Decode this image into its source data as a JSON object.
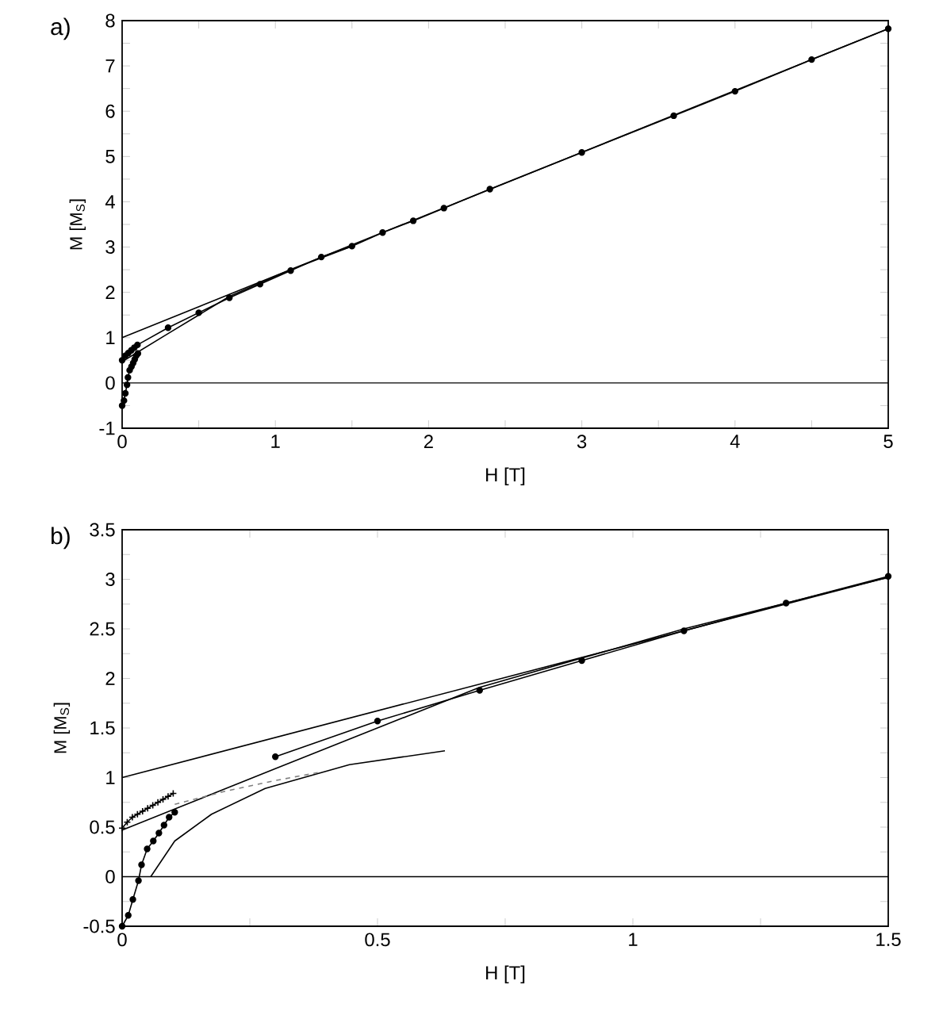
{
  "chart_data": [
    {
      "type": "line",
      "title": "a)",
      "xlabel": "H [T]",
      "ylabel": "M [M$_{S}$]",
      "xlim": [
        0,
        5
      ],
      "ylim": [
        -1,
        8
      ],
      "xticks": [
        0,
        {
          "value": 0.5,
          "label": null
        },
        1,
        {
          "value": 1.5,
          "label": null
        },
        2,
        {
          "value": 2.5,
          "label": null
        },
        3,
        {
          "value": 3.5,
          "label": null
        },
        4,
        {
          "value": 4.5,
          "label": null
        },
        5
      ],
      "yticks": [
        -1,
        {
          "value": -0.5,
          "label": null
        },
        0,
        {
          "value": 0.5,
          "label": null
        },
        1,
        {
          "value": 1.5,
          "label": null
        },
        2,
        {
          "value": 2.5,
          "label": null
        },
        3,
        {
          "value": 3.5,
          "label": null
        },
        4,
        {
          "value": 4.5,
          "label": null
        },
        5,
        {
          "value": 5.5,
          "label": null
        },
        6,
        {
          "value": 6.5,
          "label": null
        },
        7,
        {
          "value": 7.5,
          "label": null
        },
        8
      ],
      "ref_lines": [
        {
          "axis": "y",
          "value": 0
        }
      ],
      "series": [
        {
          "color": "#000000",
          "marker": "circle",
          "x": [
            0,
            0.02,
            0.04,
            0.06,
            0.08,
            0.1,
            0.3,
            0.5,
            0.7,
            0.9,
            1.1,
            1.3,
            1.5,
            1.7,
            1.9,
            2.1,
            2.4,
            3.0,
            3.6,
            4.0,
            4.5,
            5.0
          ],
          "values": [
            0.5,
            0.6,
            0.66,
            0.72,
            0.78,
            0.84,
            1.22,
            1.55,
            1.88,
            2.18,
            2.48,
            2.78,
            3.02,
            3.32,
            3.58,
            3.86,
            4.28,
            5.09,
            5.9,
            6.44,
            7.14,
            7.82
          ]
        },
        {
          "color": "#000000",
          "marker": "none",
          "x": [
            0,
            5
          ],
          "values": [
            1.0,
            7.82
          ]
        },
        {
          "color": "#000000",
          "marker": "none",
          "x": [
            0,
            0.3,
            0.7,
            1.1,
            1.5
          ],
          "values": [
            0.47,
            1.09,
            1.91,
            2.5,
            3.02
          ]
        },
        {
          "color": "#000000",
          "marker": "circle",
          "x": [
            0,
            0.012,
            0.021,
            0.032,
            0.038,
            0.049,
            0.061,
            0.072,
            0.082,
            0.092,
            0.103
          ],
          "values": [
            -0.5,
            -0.39,
            -0.23,
            -0.04,
            0.12,
            0.28,
            0.36,
            0.44,
            0.52,
            0.6,
            0.65
          ]
        }
      ]
    },
    {
      "type": "line",
      "title": "b)",
      "xlabel": "H [T]",
      "ylabel": "M [M$_{S}$]",
      "xlim": [
        0,
        1.5
      ],
      "ylim": [
        -0.5,
        3.5
      ],
      "xticks": [
        0,
        {
          "value": 0.25,
          "label": null
        },
        0.5,
        {
          "value": 0.75,
          "label": null
        },
        1,
        {
          "value": 1.25,
          "label": null
        },
        1.5
      ],
      "yticks": [
        -0.5,
        {
          "value": -0.25,
          "label": null
        },
        0,
        {
          "value": 0.25,
          "label": null
        },
        0.5,
        {
          "value": 0.75,
          "label": null
        },
        1,
        {
          "value": 1.25,
          "label": null
        },
        1.5,
        {
          "value": 1.75,
          "label": null
        },
        2,
        {
          "value": 2.25,
          "label": null
        },
        2.5,
        {
          "value": 2.75,
          "label": null
        },
        3,
        {
          "value": 3.25,
          "label": null
        },
        3.5
      ],
      "ref_lines": [
        {
          "axis": "y",
          "value": 0
        }
      ],
      "series": [
        {
          "color": "#000000",
          "marker": "circle",
          "x": [
            0.3,
            0.5,
            0.7,
            0.9,
            1.1,
            1.3,
            1.5
          ],
          "values": [
            1.21,
            1.57,
            1.88,
            2.18,
            2.48,
            2.76,
            3.03
          ]
        },
        {
          "color": "#000000",
          "marker": "cross",
          "x": [
            0,
            0.01,
            0.02,
            0.03,
            0.04,
            0.05,
            0.06,
            0.07,
            0.08,
            0.09,
            0.1
          ],
          "values": [
            0.49,
            0.55,
            0.6,
            0.63,
            0.66,
            0.69,
            0.72,
            0.75,
            0.78,
            0.81,
            0.84
          ]
        },
        {
          "color": "#000000",
          "marker": "none",
          "x": [
            0,
            1.5
          ],
          "values": [
            1.0,
            3.02
          ]
        },
        {
          "color": "#000000",
          "marker": "none",
          "x": [
            0,
            0.3,
            0.7,
            1.1,
            1.5
          ],
          "values": [
            0.47,
            1.09,
            1.91,
            2.5,
            3.02
          ]
        },
        {
          "color": "#000000",
          "marker": "circle",
          "x": [
            0,
            0.012,
            0.021,
            0.032,
            0.038,
            0.049,
            0.061,
            0.072,
            0.082,
            0.092,
            0.103
          ],
          "values": [
            -0.5,
            -0.39,
            -0.23,
            -0.04,
            0.12,
            0.28,
            0.36,
            0.44,
            0.52,
            0.6,
            0.65
          ]
        },
        {
          "color": "#000000",
          "marker": "none",
          "x": [
            0.056,
            0.103,
            0.175,
            0.28,
            0.445,
            0.632
          ],
          "values": [
            0.0,
            0.36,
            0.63,
            0.89,
            1.13,
            1.27
          ]
        },
        {
          "color": "#808080",
          "marker": "none",
          "line_style": "dashed",
          "x": [
            0.103,
            0.2,
            0.3,
            0.383
          ],
          "values": [
            0.73,
            0.86,
            0.97,
            1.05
          ]
        }
      ]
    }
  ]
}
